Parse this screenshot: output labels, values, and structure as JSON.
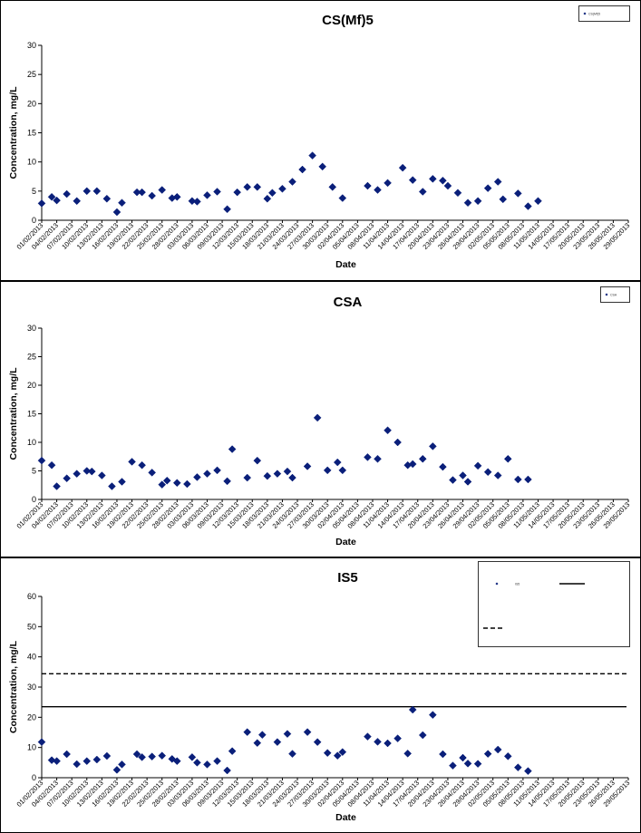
{
  "chart_data": [
    {
      "type": "scatter",
      "title": "CS(Mf)5",
      "xlabel": "Date",
      "ylabel": "Concentration, mg/L",
      "ylim": [
        0,
        30
      ],
      "yticks": [
        0,
        5,
        10,
        15,
        20,
        25,
        30
      ],
      "x_tick_labels": [
        "01/02/2013",
        "04/02/2013",
        "07/02/2013",
        "10/02/2013",
        "13/02/2013",
        "16/02/2013",
        "19/02/2013",
        "22/02/2013",
        "25/02/2013",
        "28/02/2013",
        "03/03/2013",
        "06/03/2013",
        "09/03/2013",
        "12/03/2013",
        "15/03/2013",
        "18/03/2013",
        "21/03/2013",
        "24/03/2013",
        "27/03/2013",
        "30/03/2013",
        "02/04/2013",
        "05/04/2013",
        "08/04/2013",
        "11/04/2013",
        "14/04/2013",
        "17/04/2013",
        "20/04/2013",
        "23/04/2013",
        "26/04/2013",
        "29/04/2013",
        "02/05/2013",
        "05/05/2013",
        "08/05/2013",
        "11/05/2013",
        "14/05/2013",
        "17/05/2013",
        "20/05/2013",
        "23/05/2013",
        "26/05/2013",
        "29/05/2013"
      ],
      "legend": {
        "position": "top-right",
        "entries": [
          "CS(Mf)5"
        ]
      },
      "grid": false,
      "series": [
        {
          "name": "CS(Mf)5",
          "marker": "diamond",
          "color": "#0a1f7a",
          "points": [
            [
              "01/02/2013",
              2.9
            ],
            [
              "03/02/2013",
              4.0
            ],
            [
              "04/02/2013",
              3.4
            ],
            [
              "06/02/2013",
              4.5
            ],
            [
              "08/02/2013",
              3.3
            ],
            [
              "10/02/2013",
              5.0
            ],
            [
              "12/02/2013",
              5.0
            ],
            [
              "14/02/2013",
              3.7
            ],
            [
              "16/02/2013",
              1.4
            ],
            [
              "17/02/2013",
              3.0
            ],
            [
              "20/02/2013",
              4.8
            ],
            [
              "21/02/2013",
              4.8
            ],
            [
              "23/02/2013",
              4.2
            ],
            [
              "25/02/2013",
              5.2
            ],
            [
              "27/02/2013",
              3.8
            ],
            [
              "28/02/2013",
              4.0
            ],
            [
              "03/03/2013",
              3.3
            ],
            [
              "04/03/2013",
              3.2
            ],
            [
              "06/03/2013",
              4.3
            ],
            [
              "08/03/2013",
              4.9
            ],
            [
              "10/03/2013",
              1.9
            ],
            [
              "12/03/2013",
              4.8
            ],
            [
              "14/03/2013",
              5.7
            ],
            [
              "16/03/2013",
              5.7
            ],
            [
              "18/03/2013",
              3.7
            ],
            [
              "19/03/2013",
              4.7
            ],
            [
              "21/03/2013",
              5.4
            ],
            [
              "23/03/2013",
              6.6
            ],
            [
              "25/03/2013",
              8.7
            ],
            [
              "27/03/2013",
              11.1
            ],
            [
              "29/03/2013",
              9.2
            ],
            [
              "31/03/2013",
              5.7
            ],
            [
              "02/04/2013",
              3.8
            ],
            [
              "07/04/2013",
              5.9
            ],
            [
              "09/04/2013",
              5.2
            ],
            [
              "11/04/2013",
              6.4
            ],
            [
              "14/04/2013",
              9.0
            ],
            [
              "16/04/2013",
              6.9
            ],
            [
              "18/04/2013",
              4.9
            ],
            [
              "20/04/2013",
              7.1
            ],
            [
              "22/04/2013",
              6.8
            ],
            [
              "23/04/2013",
              5.9
            ],
            [
              "25/04/2013",
              4.7
            ],
            [
              "27/04/2013",
              3.0
            ],
            [
              "29/04/2013",
              3.3
            ],
            [
              "01/05/2013",
              5.5
            ],
            [
              "03/05/2013",
              6.6
            ],
            [
              "04/05/2013",
              3.6
            ],
            [
              "07/05/2013",
              4.6
            ],
            [
              "09/05/2013",
              2.4
            ],
            [
              "11/05/2013",
              3.3
            ]
          ]
        }
      ]
    },
    {
      "type": "scatter",
      "title": "CSA",
      "xlabel": "Date",
      "ylabel": "Concentration, mg/L",
      "ylim": [
        0,
        30
      ],
      "yticks": [
        0,
        5,
        10,
        15,
        20,
        25,
        30
      ],
      "x_tick_labels": [
        "01/02/2013",
        "04/02/2013",
        "07/02/2013",
        "10/02/2013",
        "13/02/2013",
        "16/02/2013",
        "19/02/2013",
        "22/02/2013",
        "25/02/2013",
        "28/02/2013",
        "03/03/2013",
        "06/03/2013",
        "09/03/2013",
        "12/03/2013",
        "15/03/2013",
        "18/03/2013",
        "21/03/2013",
        "24/03/2013",
        "27/03/2013",
        "30/03/2013",
        "02/04/2013",
        "05/04/2013",
        "08/04/2013",
        "11/04/2013",
        "14/04/2013",
        "17/04/2013",
        "20/04/2013",
        "23/04/2013",
        "26/04/2013",
        "29/04/2013",
        "02/05/2013",
        "05/05/2013",
        "08/05/2013",
        "11/05/2013",
        "14/05/2013",
        "17/05/2013",
        "20/05/2013",
        "23/05/2013",
        "26/05/2013",
        "29/05/2013"
      ],
      "legend": {
        "position": "top-right",
        "entries": [
          "CSA"
        ]
      },
      "grid": false,
      "series": [
        {
          "name": "CSA",
          "marker": "diamond",
          "color": "#0a1f7a",
          "points": [
            [
              "01/02/2013",
              6.8
            ],
            [
              "03/02/2013",
              6.0
            ],
            [
              "04/02/2013",
              2.3
            ],
            [
              "06/02/2013",
              3.7
            ],
            [
              "08/02/2013",
              4.5
            ],
            [
              "10/02/2013",
              5.0
            ],
            [
              "11/02/2013",
              4.9
            ],
            [
              "13/02/2013",
              4.2
            ],
            [
              "15/02/2013",
              2.3
            ],
            [
              "17/02/2013",
              3.1
            ],
            [
              "19/02/2013",
              6.6
            ],
            [
              "21/02/2013",
              6.0
            ],
            [
              "23/02/2013",
              4.7
            ],
            [
              "25/02/2013",
              2.6
            ],
            [
              "26/02/2013",
              3.3
            ],
            [
              "28/02/2013",
              2.9
            ],
            [
              "02/03/2013",
              2.7
            ],
            [
              "04/03/2013",
              3.9
            ],
            [
              "06/03/2013",
              4.5
            ],
            [
              "08/03/2013",
              5.1
            ],
            [
              "10/03/2013",
              3.2
            ],
            [
              "11/03/2013",
              8.8
            ],
            [
              "14/03/2013",
              3.8
            ],
            [
              "16/03/2013",
              6.8
            ],
            [
              "18/03/2013",
              4.1
            ],
            [
              "20/03/2013",
              4.5
            ],
            [
              "22/03/2013",
              4.9
            ],
            [
              "23/03/2013",
              3.8
            ],
            [
              "26/03/2013",
              5.8
            ],
            [
              "28/03/2013",
              14.3
            ],
            [
              "30/03/2013",
              5.1
            ],
            [
              "01/04/2013",
              6.5
            ],
            [
              "02/04/2013",
              5.1
            ],
            [
              "07/04/2013",
              7.4
            ],
            [
              "09/04/2013",
              7.1
            ],
            [
              "11/04/2013",
              12.1
            ],
            [
              "13/04/2013",
              10.0
            ],
            [
              "15/04/2013",
              6.0
            ],
            [
              "16/04/2013",
              6.2
            ],
            [
              "18/04/2013",
              7.1
            ],
            [
              "20/04/2013",
              9.3
            ],
            [
              "22/04/2013",
              5.7
            ],
            [
              "24/04/2013",
              3.4
            ],
            [
              "26/04/2013",
              4.2
            ],
            [
              "27/04/2013",
              3.1
            ],
            [
              "29/04/2013",
              5.9
            ],
            [
              "01/05/2013",
              4.8
            ],
            [
              "03/05/2013",
              4.2
            ],
            [
              "05/05/2013",
              7.1
            ],
            [
              "07/05/2013",
              3.5
            ],
            [
              "09/05/2013",
              3.5
            ]
          ]
        }
      ]
    },
    {
      "type": "scatter",
      "title": "IS5",
      "xlabel": "Date",
      "ylabel": "Concentration, mg/L",
      "ylim": [
        0,
        60
      ],
      "yticks": [
        0,
        10,
        20,
        30,
        40,
        50,
        60
      ],
      "x_tick_labels": [
        "01/02/2013",
        "04/02/2013",
        "07/02/2013",
        "10/02/2013",
        "13/02/2013",
        "16/02/2013",
        "19/02/2013",
        "22/02/2013",
        "25/02/2013",
        "28/02/2013",
        "03/03/2013",
        "06/03/2013",
        "09/03/2013",
        "12/03/2013",
        "15/03/2013",
        "18/03/2013",
        "21/03/2013",
        "24/03/2013",
        "27/03/2013",
        "30/03/2013",
        "02/04/2013",
        "05/04/2013",
        "08/04/2013",
        "11/04/2013",
        "14/04/2013",
        "17/04/2013",
        "20/04/2013",
        "23/04/2013",
        "26/04/2013",
        "29/04/2013",
        "02/05/2013",
        "05/05/2013",
        "08/05/2013",
        "11/05/2013",
        "14/05/2013",
        "17/05/2013",
        "20/05/2013",
        "23/05/2013",
        "26/05/2013",
        "29/05/2013"
      ],
      "legend": {
        "position": "top-right",
        "entries": [
          "IS5"
        ]
      },
      "grid": false,
      "reference_lines": [
        {
          "value": 23.5,
          "style": "solid",
          "color": "#000000"
        },
        {
          "value": 34.4,
          "style": "dashed",
          "color": "#000000"
        }
      ],
      "series": [
        {
          "name": "IS5",
          "marker": "diamond",
          "color": "#0a1f7a",
          "points": [
            [
              "01/02/2013",
              11.8
            ],
            [
              "03/02/2013",
              5.8
            ],
            [
              "04/02/2013",
              5.5
            ],
            [
              "06/02/2013",
              7.8
            ],
            [
              "08/02/2013",
              4.5
            ],
            [
              "10/02/2013",
              5.5
            ],
            [
              "12/02/2013",
              6.0
            ],
            [
              "14/02/2013",
              7.2
            ],
            [
              "16/02/2013",
              2.6
            ],
            [
              "17/02/2013",
              4.4
            ],
            [
              "20/02/2013",
              7.8
            ],
            [
              "21/02/2013",
              6.8
            ],
            [
              "23/02/2013",
              7.0
            ],
            [
              "25/02/2013",
              7.3
            ],
            [
              "27/02/2013",
              6.2
            ],
            [
              "28/02/2013",
              5.5
            ],
            [
              "03/03/2013",
              6.8
            ],
            [
              "04/03/2013",
              5.0
            ],
            [
              "06/03/2013",
              4.4
            ],
            [
              "08/03/2013",
              5.5
            ],
            [
              "10/03/2013",
              2.4
            ],
            [
              "11/03/2013",
              8.8
            ],
            [
              "14/03/2013",
              15.1
            ],
            [
              "16/03/2013",
              11.5
            ],
            [
              "17/03/2013",
              14.2
            ],
            [
              "20/03/2013",
              11.8
            ],
            [
              "22/03/2013",
              14.5
            ],
            [
              "23/03/2013",
              7.9
            ],
            [
              "26/03/2013",
              15.1
            ],
            [
              "28/03/2013",
              11.8
            ],
            [
              "30/03/2013",
              8.2
            ],
            [
              "01/04/2013",
              7.3
            ],
            [
              "02/04/2013",
              8.5
            ],
            [
              "07/04/2013",
              13.6
            ],
            [
              "09/04/2013",
              11.9
            ],
            [
              "11/04/2013",
              11.4
            ],
            [
              "13/04/2013",
              13.0
            ],
            [
              "15/04/2013",
              8.0
            ],
            [
              "16/04/2013",
              22.5
            ],
            [
              "18/04/2013",
              14.1
            ],
            [
              "20/04/2013",
              20.8
            ],
            [
              "22/04/2013",
              7.8
            ],
            [
              "24/04/2013",
              4.0
            ],
            [
              "26/04/2013",
              6.6
            ],
            [
              "27/04/2013",
              4.7
            ],
            [
              "29/04/2013",
              4.6
            ],
            [
              "01/05/2013",
              7.9
            ],
            [
              "03/05/2013",
              9.3
            ],
            [
              "05/05/2013",
              7.1
            ],
            [
              "07/05/2013",
              3.4
            ],
            [
              "09/05/2013",
              2.2
            ]
          ]
        }
      ]
    }
  ]
}
